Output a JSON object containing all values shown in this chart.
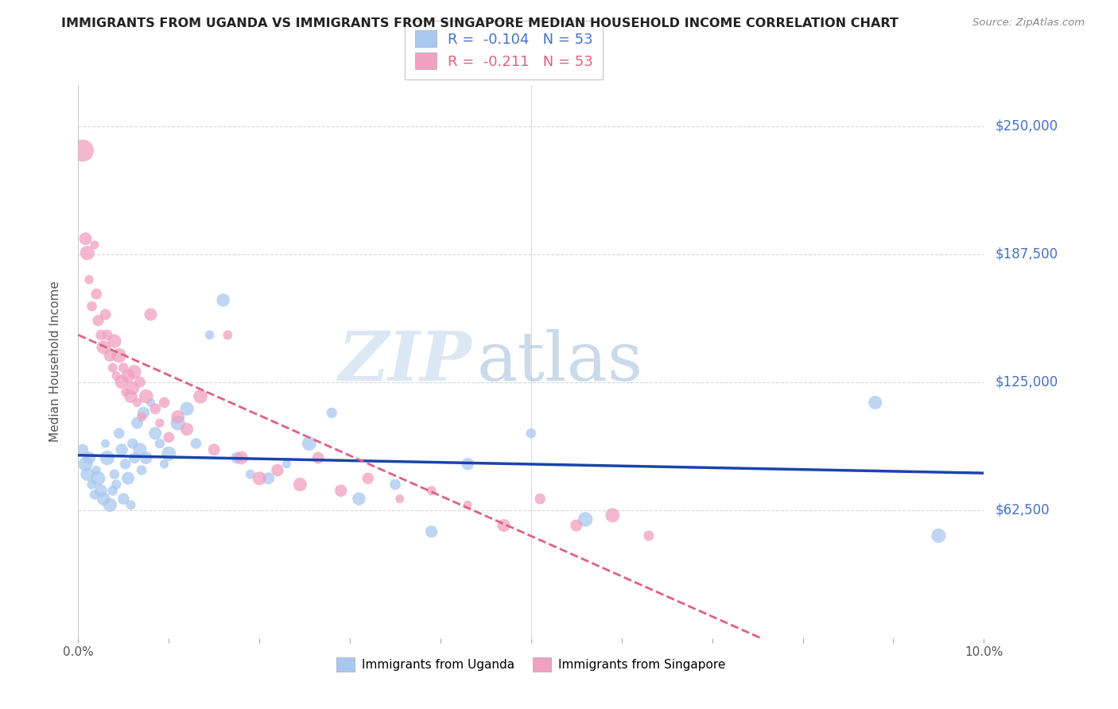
{
  "title": "IMMIGRANTS FROM UGANDA VS IMMIGRANTS FROM SINGAPORE MEDIAN HOUSEHOLD INCOME CORRELATION CHART",
  "source": "Source: ZipAtlas.com",
  "ylabel": "Median Household Income",
  "yticks": [
    0,
    62500,
    125000,
    187500,
    250000
  ],
  "ytick_labels": [
    "",
    "$62,500",
    "$125,000",
    "$187,500",
    "$250,000"
  ],
  "xlim": [
    0.0,
    10.0
  ],
  "ylim": [
    0,
    270000
  ],
  "watermark_zip": "ZIP",
  "watermark_atlas": "atlas",
  "legend_uganda": "R =  -0.104   N = 53",
  "legend_singapore": "R =  -0.211   N = 53",
  "legend_label_uganda": "Immigrants from Uganda",
  "legend_label_singapore": "Immigrants from Singapore",
  "color_uganda": "#A8C8F0",
  "color_singapore": "#F0A0C0",
  "color_trendline_uganda": "#1A44AA",
  "color_trendline_singapore": "#E06080",
  "uganda_x": [
    0.05,
    0.08,
    0.1,
    0.12,
    0.15,
    0.18,
    0.2,
    0.22,
    0.25,
    0.28,
    0.3,
    0.32,
    0.35,
    0.38,
    0.4,
    0.42,
    0.45,
    0.48,
    0.5,
    0.52,
    0.55,
    0.58,
    0.6,
    0.62,
    0.65,
    0.68,
    0.7,
    0.72,
    0.75,
    0.8,
    0.85,
    0.9,
    0.95,
    1.0,
    1.1,
    1.2,
    1.3,
    1.45,
    1.6,
    1.75,
    1.9,
    2.1,
    2.3,
    2.55,
    2.8,
    3.1,
    3.5,
    3.9,
    4.3,
    5.0,
    5.6,
    8.8,
    9.5
  ],
  "uganda_y": [
    92000,
    85000,
    80000,
    88000,
    75000,
    70000,
    82000,
    78000,
    72000,
    68000,
    95000,
    88000,
    65000,
    72000,
    80000,
    75000,
    100000,
    92000,
    68000,
    85000,
    78000,
    65000,
    95000,
    88000,
    105000,
    92000,
    82000,
    110000,
    88000,
    115000,
    100000,
    95000,
    85000,
    90000,
    105000,
    112000,
    95000,
    148000,
    165000,
    88000,
    80000,
    78000,
    85000,
    95000,
    110000,
    68000,
    75000,
    52000,
    85000,
    100000,
    58000,
    115000,
    50000
  ],
  "singapore_x": [
    0.05,
    0.08,
    0.1,
    0.12,
    0.15,
    0.18,
    0.2,
    0.22,
    0.25,
    0.28,
    0.3,
    0.32,
    0.35,
    0.38,
    0.4,
    0.42,
    0.45,
    0.48,
    0.5,
    0.52,
    0.55,
    0.58,
    0.6,
    0.62,
    0.65,
    0.68,
    0.7,
    0.75,
    0.8,
    0.85,
    0.9,
    0.95,
    1.0,
    1.1,
    1.2,
    1.35,
    1.5,
    1.65,
    1.8,
    2.0,
    2.2,
    2.45,
    2.65,
    2.9,
    3.2,
    3.55,
    3.9,
    4.3,
    4.7,
    5.1,
    5.5,
    5.9,
    6.3
  ],
  "singapore_y": [
    238000,
    195000,
    188000,
    175000,
    162000,
    192000,
    168000,
    155000,
    148000,
    142000,
    158000,
    148000,
    138000,
    132000,
    145000,
    128000,
    138000,
    125000,
    132000,
    120000,
    128000,
    118000,
    122000,
    130000,
    115000,
    125000,
    108000,
    118000,
    158000,
    112000,
    105000,
    115000,
    98000,
    108000,
    102000,
    118000,
    92000,
    148000,
    88000,
    78000,
    82000,
    75000,
    88000,
    72000,
    78000,
    68000,
    72000,
    65000,
    55000,
    68000,
    55000,
    60000,
    50000
  ],
  "uganda_sizes_base": 120,
  "singapore_sizes_base": 120,
  "trendline_xlim_uganda": [
    0.0,
    10.0
  ],
  "trendline_xlim_singapore": [
    0.0,
    10.0
  ]
}
